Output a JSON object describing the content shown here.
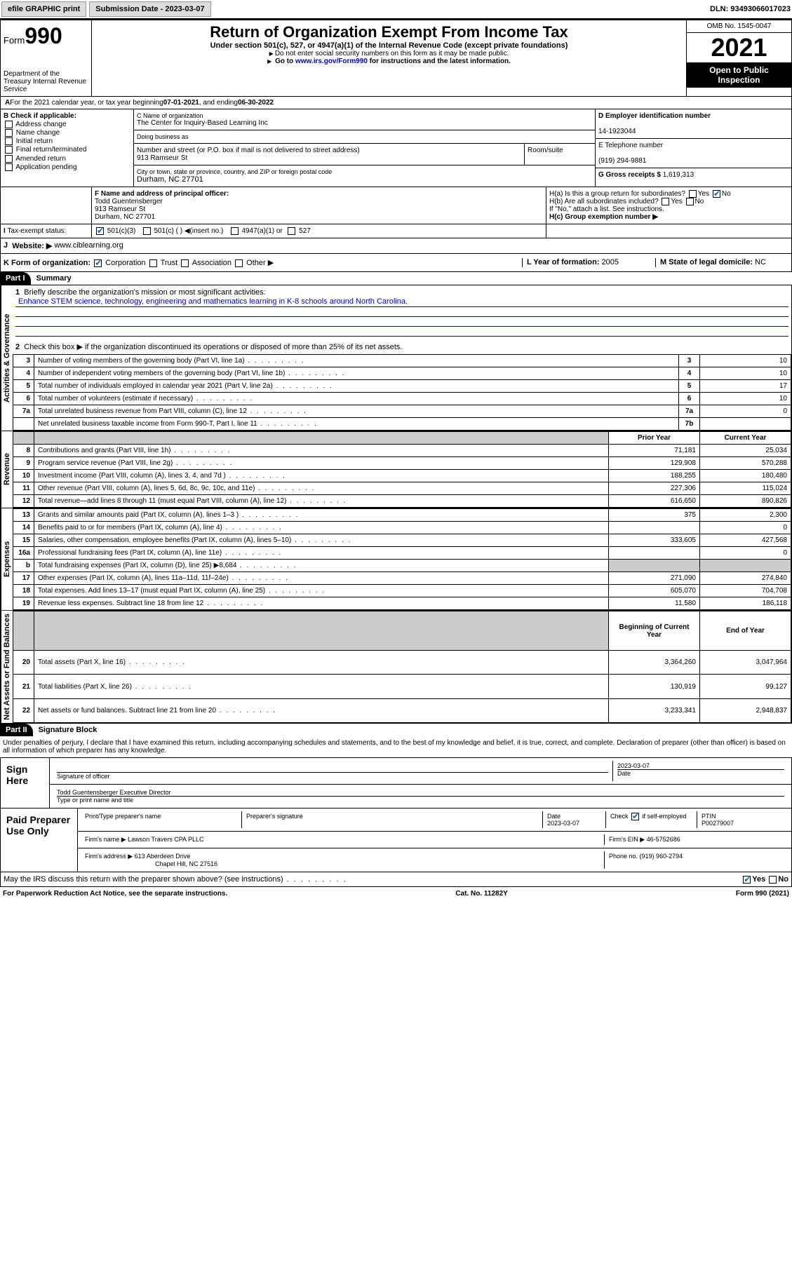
{
  "topbar": {
    "efile": "efile GRAPHIC print",
    "subdate_lbl": "Submission Date - ",
    "subdate": "2023-03-07",
    "dln_lbl": "DLN: ",
    "dln": "93493066017023"
  },
  "header": {
    "form_label": "Form",
    "form_num": "990",
    "dept": "Department of the Treasury\nInternal Revenue Service",
    "title": "Return of Organization Exempt From Income Tax",
    "sub": "Under section 501(c), 527, or 4947(a)(1) of the Internal Revenue Code (except private foundations)",
    "note1": "Do not enter social security numbers on this form as it may be made public.",
    "note2_pre": "Go to ",
    "note2_link": "www.irs.gov/Form990",
    "note2_post": " for instructions and the latest information.",
    "omb": "OMB No. 1545-0047",
    "year": "2021",
    "openpub": "Open to Public Inspection"
  },
  "periodA": {
    "text": "For the 2021 calendar year, or tax year beginning ",
    "begin": "07-01-2021",
    "mid": " , and ending ",
    "end": "06-30-2022"
  },
  "boxB": {
    "label": "B Check if applicable:",
    "opts": [
      "Address change",
      "Name change",
      "Initial return",
      "Final return/terminated",
      "Amended return",
      "Application pending"
    ]
  },
  "boxC": {
    "name_lbl": "C Name of organization",
    "name": "The Center for Inquiry-Based Learning Inc",
    "dba_lbl": "Doing business as",
    "street_lbl": "Number and street (or P.O. box if mail is not delivered to street address)",
    "street": "913 Ramseur St",
    "suite_lbl": "Room/suite",
    "city_lbl": "City or town, state or province, country, and ZIP or foreign postal code",
    "city": "Durham, NC  27701"
  },
  "boxD": {
    "lbl": "D Employer identification number",
    "val": "14-1923044"
  },
  "boxE": {
    "lbl": "E Telephone number",
    "val": "(919) 294-9881"
  },
  "boxG": {
    "lbl": "G Gross receipts $ ",
    "val": "1,619,313"
  },
  "boxF": {
    "lbl": "F Name and address of principal officer:",
    "name": "Todd Guentensberger",
    "addr1": "913 Ramseur St",
    "addr2": "Durham, NC  27701"
  },
  "boxH": {
    "a": "H(a)  Is this a group return for subordinates?",
    "b": "H(b)  Are all subordinates included?",
    "b_note": "If \"No,\" attach a list. See instructions.",
    "c": "H(c)  Group exemption number ▶",
    "yes": "Yes",
    "no": "No"
  },
  "boxI": {
    "lbl": "Tax-exempt status:",
    "o1": "501(c)(3)",
    "o2": "501(c) (  ) ◀(insert no.)",
    "o3": "4947(a)(1) or",
    "o4": "527"
  },
  "boxJ": {
    "lbl": "Website: ▶",
    "val": "www.ciblearning.org"
  },
  "boxK": {
    "lbl": "K Form of organization:",
    "o1": "Corporation",
    "o2": "Trust",
    "o3": "Association",
    "o4": "Other ▶"
  },
  "boxL": {
    "lbl": "L Year of formation: ",
    "val": "2005"
  },
  "boxM": {
    "lbl": "M State of legal domicile: ",
    "val": "NC"
  },
  "part1": {
    "hdr": "Part I",
    "title": "Summary"
  },
  "summary": {
    "q1": "Briefly describe the organization's mission or most significant activities:",
    "mission": "Enhance STEM science, technology, engineering and mathematics learning in K-8 schools around North Carolina.",
    "q2": "Check this box ▶           if the organization discontinued its operations or disposed of more than 25% of its net assets.",
    "rows_gov": [
      {
        "n": "3",
        "d": "Number of voting members of the governing body (Part VI, line 1a)",
        "b": "3",
        "v": "10"
      },
      {
        "n": "4",
        "d": "Number of independent voting members of the governing body (Part VI, line 1b)",
        "b": "4",
        "v": "10"
      },
      {
        "n": "5",
        "d": "Total number of individuals employed in calendar year 2021 (Part V, line 2a)",
        "b": "5",
        "v": "17"
      },
      {
        "n": "6",
        "d": "Total number of volunteers (estimate if necessary)",
        "b": "6",
        "v": "10"
      },
      {
        "n": "7a",
        "d": "Total unrelated business revenue from Part VIII, column (C), line 12",
        "b": "7a",
        "v": "0"
      },
      {
        "n": "",
        "d": "Net unrelated business taxable income from Form 990-T, Part I, line 11",
        "b": "7b",
        "v": ""
      }
    ],
    "col_prior": "Prior Year",
    "col_current": "Current Year",
    "rows_rev": [
      {
        "n": "8",
        "d": "Contributions and grants (Part VIII, line 1h)",
        "p": "71,181",
        "c": "25,034"
      },
      {
        "n": "9",
        "d": "Program service revenue (Part VIII, line 2g)",
        "p": "129,908",
        "c": "570,288"
      },
      {
        "n": "10",
        "d": "Investment income (Part VIII, column (A), lines 3, 4, and 7d )",
        "p": "188,255",
        "c": "180,480"
      },
      {
        "n": "11",
        "d": "Other revenue (Part VIII, column (A), lines 5, 6d, 8c, 9c, 10c, and 11e)",
        "p": "227,306",
        "c": "115,024"
      },
      {
        "n": "12",
        "d": "Total revenue—add lines 8 through 11 (must equal Part VIII, column (A), line 12)",
        "p": "616,650",
        "c": "890,826"
      }
    ],
    "rows_exp": [
      {
        "n": "13",
        "d": "Grants and similar amounts paid (Part IX, column (A), lines 1–3 )",
        "p": "375",
        "c": "2,300"
      },
      {
        "n": "14",
        "d": "Benefits paid to or for members (Part IX, column (A), line 4)",
        "p": "",
        "c": "0"
      },
      {
        "n": "15",
        "d": "Salaries, other compensation, employee benefits (Part IX, column (A), lines 5–10)",
        "p": "333,605",
        "c": "427,568"
      },
      {
        "n": "16a",
        "d": "Professional fundraising fees (Part IX, column (A), line 11e)",
        "p": "",
        "c": "0"
      },
      {
        "n": "b",
        "d": "Total fundraising expenses (Part IX, column (D), line 25) ▶8,684",
        "p": "grey",
        "c": "grey"
      },
      {
        "n": "17",
        "d": "Other expenses (Part IX, column (A), lines 11a–11d, 11f–24e)",
        "p": "271,090",
        "c": "274,840"
      },
      {
        "n": "18",
        "d": "Total expenses. Add lines 13–17 (must equal Part IX, column (A), line 25)",
        "p": "605,070",
        "c": "704,708"
      },
      {
        "n": "19",
        "d": "Revenue less expenses. Subtract line 18 from line 12",
        "p": "11,580",
        "c": "186,118"
      }
    ],
    "col_begin": "Beginning of Current Year",
    "col_end": "End of Year",
    "rows_net": [
      {
        "n": "20",
        "d": "Total assets (Part X, line 16)",
        "p": "3,364,260",
        "c": "3,047,964"
      },
      {
        "n": "21",
        "d": "Total liabilities (Part X, line 26)",
        "p": "130,919",
        "c": "99,127"
      },
      {
        "n": "22",
        "d": "Net assets or fund balances. Subtract line 21 from line 20",
        "p": "3,233,341",
        "c": "2,948,837"
      }
    ],
    "side_gov": "Activities & Governance",
    "side_rev": "Revenue",
    "side_exp": "Expenses",
    "side_net": "Net Assets or Fund Balances"
  },
  "part2": {
    "hdr": "Part II",
    "title": "Signature Block"
  },
  "decl": "Under penalties of perjury, I declare that I have examined this return, including accompanying schedules and statements, and to the best of my knowledge and belief, it is true, correct, and complete. Declaration of preparer (other than officer) is based on all information of which preparer has any knowledge.",
  "sign": {
    "here": "Sign Here",
    "sig_lbl": "Signature of officer",
    "date_lbl": "Date",
    "date": "2023-03-07",
    "name": "Todd Guentensberger  Executive Director",
    "name_lbl": "Type or print name and title"
  },
  "paid": {
    "title": "Paid Preparer Use Only",
    "pt_lbl": "Print/Type preparer's name",
    "sig_lbl": "Preparer's signature",
    "date_lbl": "Date",
    "date": "2023-03-07",
    "self_lbl": "Check          if self-employed",
    "ptin_lbl": "PTIN",
    "ptin": "P00279007",
    "firm_lbl": "Firm's name    ▶",
    "firm": "Lawson Travers CPA PLLC",
    "ein_lbl": "Firm's EIN ▶",
    "ein": "46-5752686",
    "addr_lbl": "Firm's address ▶",
    "addr1": "613 Aberdeen Drive",
    "addr2": "Chapel Hill, NC  27516",
    "phone_lbl": "Phone no. ",
    "phone": "(919) 960-2794"
  },
  "may": "May the IRS discuss this return with the preparer shown above? (see instructions)",
  "footer": {
    "pra": "For Paperwork Reduction Act Notice, see the separate instructions.",
    "cat": "Cat. No. 11282Y",
    "form": "Form 990 (2021)"
  }
}
